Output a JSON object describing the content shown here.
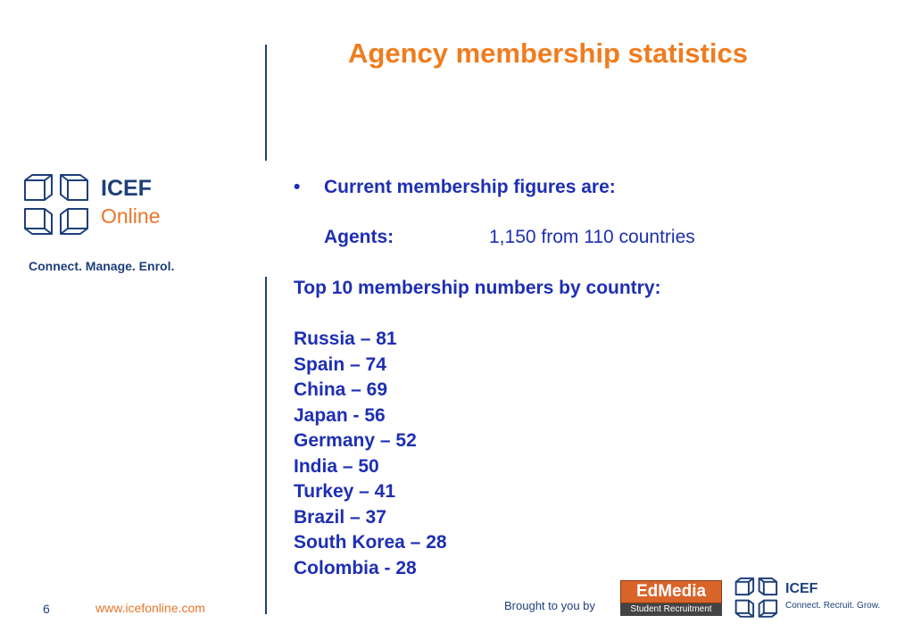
{
  "slide": {
    "title": "Agency membership statistics",
    "page_number": "6"
  },
  "logo": {
    "name": "ICEF",
    "subtitle": "Online",
    "tagline": "Connect. Manage. Enrol."
  },
  "content": {
    "bullet_char": "•",
    "bullet_heading": "Current membership figures are:",
    "agents_label": "Agents:",
    "agents_value": "1,150 from 110 countries",
    "top10_heading": "Top 10 membership numbers by country:",
    "countries": [
      "Russia – 81",
      "Spain – 74",
      "China – 69",
      "Japan - 56",
      "Germany – 52",
      "India – 50",
      "Turkey – 41",
      "Brazil – 37",
      "South Korea – 28",
      "Colombia - 28"
    ]
  },
  "footer": {
    "url": "www.icefonline.com",
    "brought_by": "Brought to you by",
    "edmedia_name": "EdMedia",
    "edmedia_sub": "Student Recruitment",
    "icef_name": "ICEF",
    "icef_tagline": "Connect. Recruit. Grow."
  },
  "colors": {
    "title": "#f07c1e",
    "body_text": "#1e2fb3",
    "brand_blue": "#1d3f7a",
    "brand_orange": "#e8762b"
  },
  "icons": [
    "cube-logo-icon",
    "small-cube-logo-icon"
  ]
}
